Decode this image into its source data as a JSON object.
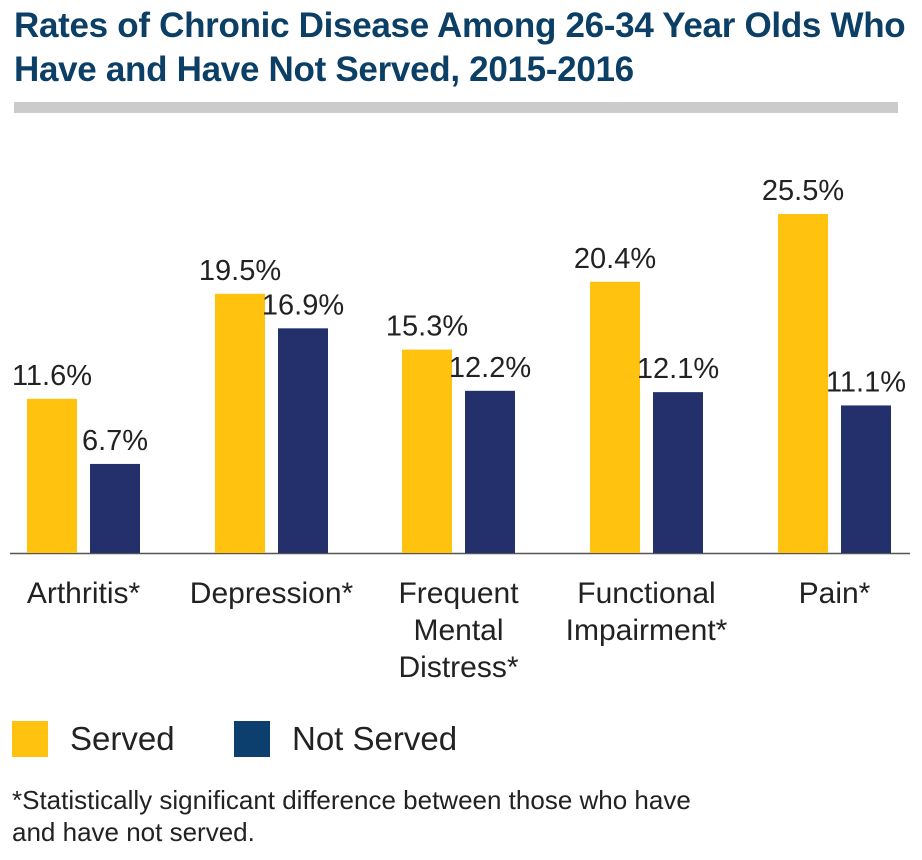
{
  "title": "Rates of Chronic Disease Among 26-34 Year Olds Who Have and Have Not Served, 2015-2016",
  "footnote": "*Statistically significant difference between those who have and have not served.",
  "colors": {
    "served": "#ffc20e",
    "not_served": "#24306b",
    "legend_not_served": "#0c3f6e",
    "rule": "#cbcbcb",
    "axis": "#555555"
  },
  "legend": [
    {
      "label": "Served",
      "color": "#ffc20e"
    },
    {
      "label": "Not Served",
      "color": "#0c3f6e"
    }
  ],
  "chart_data": {
    "type": "bar",
    "categories": [
      [
        "Arthritis*"
      ],
      [
        "Depression*"
      ],
      [
        "Frequent",
        "Mental",
        "Distress*"
      ],
      [
        "Functional",
        "Impairment*"
      ],
      [
        "Pain*"
      ]
    ],
    "series": [
      {
        "name": "Served",
        "values": [
          11.6,
          19.5,
          15.3,
          20.4,
          25.5
        ],
        "labels": [
          "11.6%",
          "19.5%",
          "15.3%",
          "20.4%",
          "25.5%"
        ]
      },
      {
        "name": "Not Served",
        "values": [
          6.7,
          16.9,
          12.2,
          12.1,
          11.1
        ],
        "labels": [
          "6.7%",
          "16.9%",
          "12.2%",
          "12.1%",
          "11.1%"
        ]
      }
    ],
    "ylim": [
      0,
      25.5
    ],
    "grid": false,
    "legend_position": "bottom-left"
  }
}
